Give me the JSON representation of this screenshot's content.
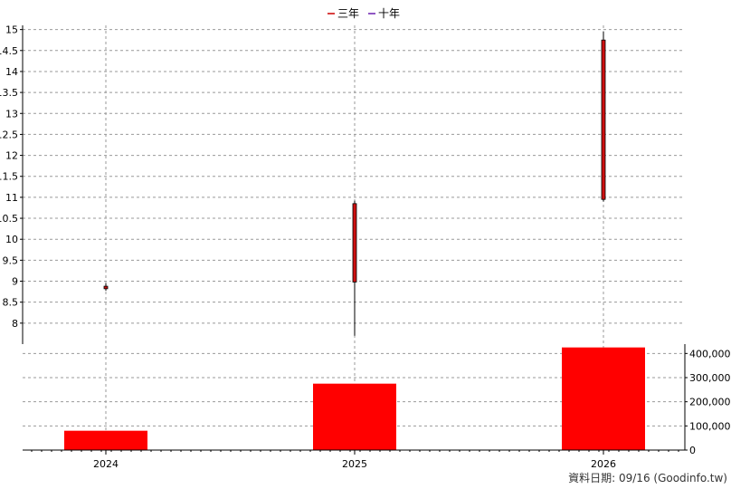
{
  "legend": [
    {
      "label": "三年",
      "color": "#cc0000"
    },
    {
      "label": "十年",
      "color": "#6a1fb0"
    }
  ],
  "footer": "資料日期: 09/16  (Goodinfo.tw)",
  "colors": {
    "candle": "#cc1010",
    "volume": "#ff0000",
    "grid": "#999999",
    "axis": "#000000"
  },
  "chart_data": [
    {
      "type": "candlestick",
      "categories": [
        "2024",
        "2025",
        "2026"
      ],
      "y_ticks": [
        "8",
        "8.5",
        "9",
        "9.5",
        "10",
        "10.5",
        "11",
        "11.5",
        "12",
        "12.5",
        "13",
        "13.5",
        "14",
        "14.5",
        "15"
      ],
      "ylim": [
        7.5,
        15.1
      ],
      "grid": true,
      "series": [
        {
          "values": [
            {
              "x": "2024",
              "open": 8.88,
              "high": 8.95,
              "low": 8.77,
              "close": 8.82
            },
            {
              "x": "2025",
              "open": 10.85,
              "high": 10.92,
              "low": 7.7,
              "close": 8.98
            },
            {
              "x": "2026",
              "open": 14.75,
              "high": 14.95,
              "low": 10.9,
              "close": 10.95
            }
          ]
        }
      ]
    },
    {
      "type": "bar",
      "categories": [
        "2024",
        "2025",
        "2026"
      ],
      "values": [
        80000,
        275000,
        425000
      ],
      "y_ticks": [
        "0",
        "100,000",
        "200,000",
        "300,000",
        "400,000"
      ],
      "ylim": [
        0,
        420000
      ],
      "grid": true
    }
  ]
}
